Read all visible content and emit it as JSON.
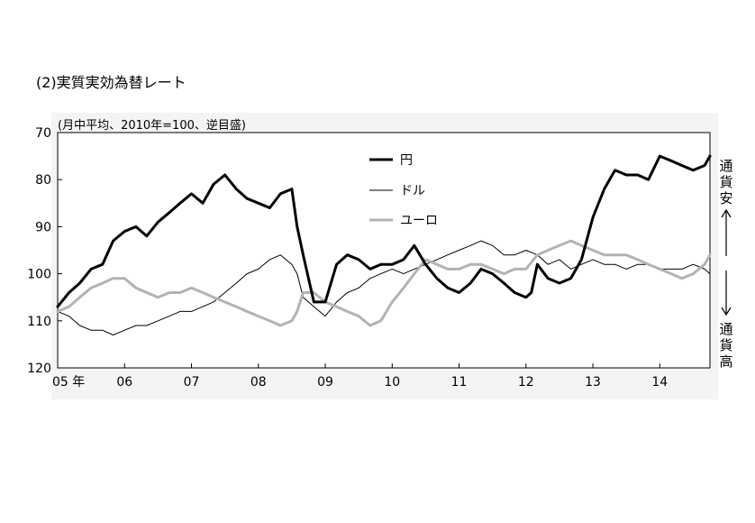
{
  "chart_data": {
    "type": "line",
    "title": "(2)実質実効為替レート",
    "subtitle": "(月中平均、2010年=100、逆目盛)",
    "y_reversed": true,
    "ylim": [
      70,
      120
    ],
    "yticks": [
      70,
      80,
      90,
      100,
      110,
      120
    ],
    "x_tick_labels": [
      {
        "label": "05 年",
        "x": 2005
      },
      {
        "label": "06",
        "x": 2006
      },
      {
        "label": "07",
        "x": 2007
      },
      {
        "label": "08",
        "x": 2008
      },
      {
        "label": "09",
        "x": 2009
      },
      {
        "label": "10",
        "x": 2010
      },
      {
        "label": "11",
        "x": 2011
      },
      {
        "label": "12",
        "x": 2012
      },
      {
        "label": "13",
        "x": 2013
      },
      {
        "label": "14",
        "x": 2014
      }
    ],
    "xlim": [
      2005.0,
      2014.75
    ],
    "right_annotations": {
      "top": [
        "通",
        "貨",
        "安"
      ],
      "bottom": [
        "通",
        "貨",
        "高"
      ]
    },
    "legend_position": "top-center",
    "series": [
      {
        "name": "円",
        "color": "#000000",
        "width": 3,
        "x": [
          2005.0,
          2005.17,
          2005.33,
          2005.5,
          2005.67,
          2005.83,
          2006.0,
          2006.17,
          2006.33,
          2006.5,
          2006.67,
          2006.83,
          2007.0,
          2007.17,
          2007.33,
          2007.5,
          2007.67,
          2007.83,
          2008.0,
          2008.17,
          2008.33,
          2008.5,
          2008.58,
          2008.67,
          2008.83,
          2009.0,
          2009.17,
          2009.33,
          2009.5,
          2009.67,
          2009.83,
          2010.0,
          2010.17,
          2010.33,
          2010.5,
          2010.67,
          2010.83,
          2011.0,
          2011.17,
          2011.33,
          2011.5,
          2011.67,
          2011.83,
          2012.0,
          2012.08,
          2012.17,
          2012.33,
          2012.5,
          2012.67,
          2012.83,
          2013.0,
          2013.17,
          2013.33,
          2013.5,
          2013.67,
          2013.83,
          2014.0,
          2014.17,
          2014.33,
          2014.5,
          2014.67,
          2014.75
        ],
        "values": [
          107,
          104,
          102,
          99,
          98,
          93,
          91,
          90,
          92,
          89,
          87,
          85,
          83,
          85,
          81,
          79,
          82,
          84,
          85,
          86,
          83,
          82,
          90,
          96,
          106,
          106,
          98,
          96,
          97,
          99,
          98,
          98,
          97,
          94,
          98,
          101,
          103,
          104,
          102,
          99,
          100,
          102,
          104,
          105,
          104,
          98,
          101,
          102,
          101,
          97,
          88,
          82,
          78,
          79,
          79,
          80,
          75,
          76,
          77,
          78,
          77,
          75
        ]
      },
      {
        "name": "ドル",
        "color": "#000000",
        "width": 1,
        "x": [
          2005.0,
          2005.17,
          2005.33,
          2005.5,
          2005.67,
          2005.83,
          2006.0,
          2006.17,
          2006.33,
          2006.5,
          2006.67,
          2006.83,
          2007.0,
          2007.17,
          2007.33,
          2007.5,
          2007.67,
          2007.83,
          2008.0,
          2008.17,
          2008.33,
          2008.5,
          2008.58,
          2008.67,
          2008.83,
          2009.0,
          2009.17,
          2009.33,
          2009.5,
          2009.67,
          2009.83,
          2010.0,
          2010.17,
          2010.33,
          2010.5,
          2010.67,
          2010.83,
          2011.0,
          2011.17,
          2011.33,
          2011.5,
          2011.67,
          2011.83,
          2012.0,
          2012.17,
          2012.33,
          2012.5,
          2012.67,
          2012.83,
          2013.0,
          2013.17,
          2013.33,
          2013.5,
          2013.67,
          2013.83,
          2014.0,
          2014.17,
          2014.33,
          2014.5,
          2014.67,
          2014.75
        ],
        "values": [
          108,
          109,
          111,
          112,
          112,
          113,
          112,
          111,
          111,
          110,
          109,
          108,
          108,
          107,
          106,
          104,
          102,
          100,
          99,
          97,
          96,
          98,
          100,
          105,
          107,
          109,
          106,
          104,
          103,
          101,
          100,
          99,
          100,
          99,
          98,
          97,
          96,
          95,
          94,
          93,
          94,
          96,
          96,
          95,
          96,
          98,
          97,
          99,
          98,
          97,
          98,
          98,
          99,
          98,
          98,
          99,
          99,
          99,
          98,
          99,
          100
        ]
      },
      {
        "name": "ユーロ",
        "color": "#b3b3b3",
        "width": 3,
        "x": [
          2005.0,
          2005.17,
          2005.33,
          2005.5,
          2005.67,
          2005.83,
          2006.0,
          2006.17,
          2006.33,
          2006.5,
          2006.67,
          2006.83,
          2007.0,
          2007.17,
          2007.33,
          2007.5,
          2007.67,
          2007.83,
          2008.0,
          2008.17,
          2008.33,
          2008.5,
          2008.58,
          2008.67,
          2008.83,
          2009.0,
          2009.17,
          2009.33,
          2009.5,
          2009.67,
          2009.83,
          2010.0,
          2010.17,
          2010.33,
          2010.5,
          2010.67,
          2010.83,
          2011.0,
          2011.17,
          2011.33,
          2011.5,
          2011.67,
          2011.83,
          2012.0,
          2012.17,
          2012.33,
          2012.5,
          2012.67,
          2012.83,
          2013.0,
          2013.17,
          2013.33,
          2013.5,
          2013.67,
          2013.83,
          2014.0,
          2014.17,
          2014.33,
          2014.5,
          2014.67,
          2014.75
        ],
        "values": [
          108,
          107,
          105,
          103,
          102,
          101,
          101,
          103,
          104,
          105,
          104,
          104,
          103,
          104,
          105,
          106,
          107,
          108,
          109,
          110,
          111,
          110,
          108,
          104,
          104,
          106,
          107,
          108,
          109,
          111,
          110,
          106,
          103,
          100,
          97,
          98,
          99,
          99,
          98,
          98,
          99,
          100,
          99,
          99,
          96,
          95,
          94,
          93,
          94,
          95,
          96,
          96,
          96,
          97,
          98,
          99,
          100,
          101,
          100,
          98,
          96
        ]
      }
    ]
  }
}
